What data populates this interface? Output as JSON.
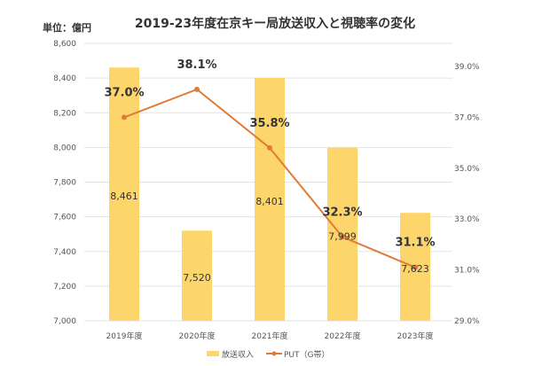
{
  "chart_data": {
    "type": "bar+line",
    "title": "2019-23年度在京キー局放送収入と視聴率の変化",
    "unit_label": "単位：億円",
    "categories": [
      "2019年度",
      "2020年度",
      "2021年度",
      "2022年度",
      "2023年度"
    ],
    "series": [
      {
        "name": "放送収入",
        "type": "bar",
        "axis": "left",
        "values": [
          8461,
          7520,
          8401,
          7999,
          7623
        ],
        "labels": [
          "8,461",
          "7,520",
          "8,401",
          "7,999",
          "7,623"
        ],
        "color": "#FCD56B"
      },
      {
        "name": "PUT（G帯）",
        "type": "line",
        "axis": "right",
        "values": [
          37.0,
          38.1,
          35.8,
          32.3,
          31.1
        ],
        "labels": [
          "37.0%",
          "38.1%",
          "35.8%",
          "32.3%",
          "31.1%"
        ],
        "color": "#E07B39"
      }
    ],
    "left_axis": {
      "ylim": [
        7000,
        8600
      ],
      "ticks": [
        7000,
        7200,
        7400,
        7600,
        7800,
        8000,
        8200,
        8400,
        8600
      ],
      "tick_labels": [
        "7,000",
        "7,200",
        "7,400",
        "7,600",
        "7,800",
        "8,000",
        "8,200",
        "8,400",
        "8,600"
      ]
    },
    "right_axis": {
      "ylim": [
        29,
        39
      ],
      "ticks": [
        29,
        31,
        33,
        35,
        37,
        39
      ],
      "tick_labels": [
        "29.0%",
        "31.0%",
        "33.0%",
        "35.0%",
        "37.0%",
        "39.0%"
      ]
    },
    "grid": true,
    "legend_position": "bottom"
  }
}
